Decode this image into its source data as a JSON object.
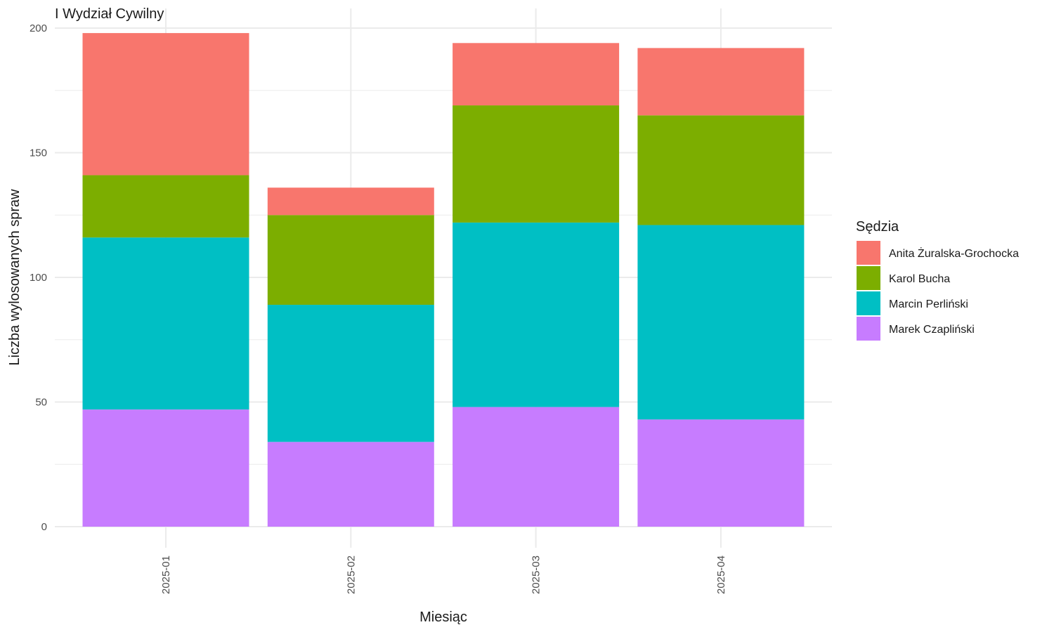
{
  "chart_data": {
    "type": "bar",
    "stacked": true,
    "title": "I Wydział Cywilny",
    "xlabel": "Miesiąc",
    "ylabel": "Liczba wylosowanych spraw",
    "ylim": [
      0,
      200
    ],
    "yticks": [
      0,
      50,
      100,
      150,
      200
    ],
    "grid": true,
    "legend_title": "Sędzia",
    "legend_position": "right",
    "categories": [
      "2025-01",
      "2025-02",
      "2025-03",
      "2025-04"
    ],
    "series": [
      {
        "name": "Marek Czapliński",
        "color": "#C77CFF",
        "values": [
          47,
          34,
          48,
          43
        ]
      },
      {
        "name": "Marcin Perliński",
        "color": "#00BFC4",
        "values": [
          69,
          55,
          74,
          78
        ]
      },
      {
        "name": "Karol Bucha",
        "color": "#7CAE00",
        "values": [
          25,
          36,
          47,
          44
        ]
      },
      {
        "name": "Anita Żuralska-Grochocka",
        "color": "#F8766D",
        "values": [
          57,
          11,
          25,
          27
        ]
      }
    ],
    "legend_order": [
      "Anita Żuralska-Grochocka",
      "Karol Bucha",
      "Marcin Perliński",
      "Marek Czapliński"
    ]
  }
}
